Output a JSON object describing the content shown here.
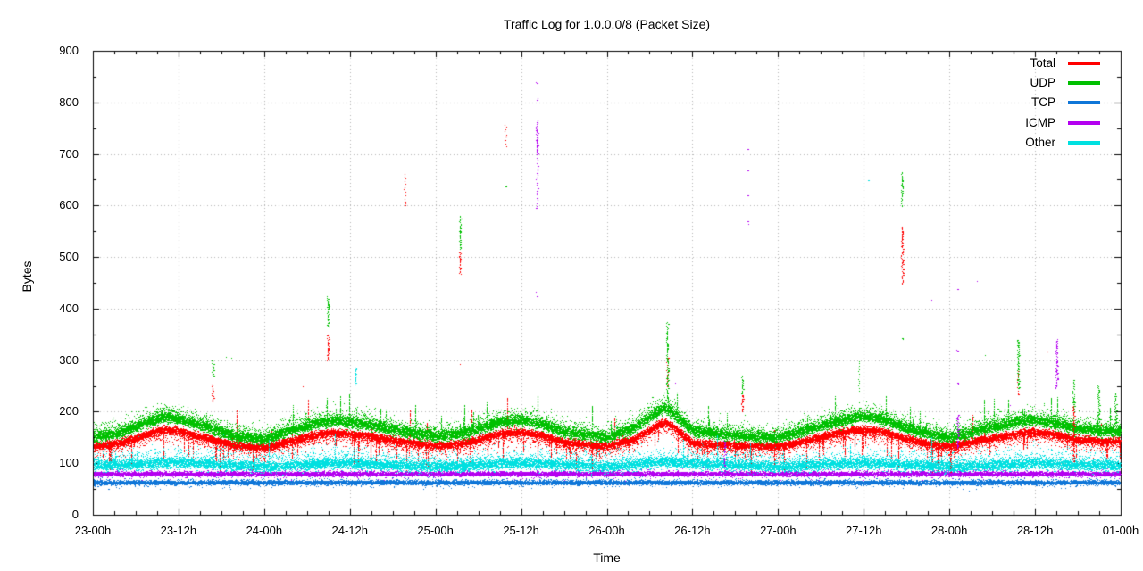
{
  "chart_data": {
    "type": "scatter",
    "title": "Traffic Log for 1.0.0.0/8 (Packet Size)",
    "xlabel": "Time",
    "ylabel": "Bytes",
    "ylim": [
      0,
      900
    ],
    "y_major_step": 100,
    "y_minor_step": 50,
    "y_tick_labels": [
      "0",
      "100",
      "200",
      "300",
      "400",
      "500",
      "600",
      "700",
      "800",
      "900"
    ],
    "x_hours_total": 144,
    "x_major_step_hours": 12,
    "x_minor_step_hours": 3,
    "x_tick_labels": [
      "23-00h",
      "23-12h",
      "24-00h",
      "24-12h",
      "25-00h",
      "25-12h",
      "26-00h",
      "26-12h",
      "27-00h",
      "27-12h",
      "28-00h",
      "28-12h",
      "01-00h"
    ],
    "grid": {
      "show": true,
      "color": "#b4b4b4",
      "style": "dotted"
    },
    "legend": {
      "position": "top-right-inside"
    },
    "series": [
      {
        "name": "Total",
        "color": "#ff0000",
        "style": "dots",
        "envelope": [
          [
            0,
            133
          ],
          [
            4,
            141
          ],
          [
            8,
            159
          ],
          [
            10,
            166
          ],
          [
            12,
            163
          ],
          [
            16,
            149
          ],
          [
            20,
            135
          ],
          [
            24,
            131
          ],
          [
            28,
            145
          ],
          [
            32,
            158
          ],
          [
            34,
            160
          ],
          [
            38,
            154
          ],
          [
            42,
            145
          ],
          [
            48,
            135
          ],
          [
            52,
            140
          ],
          [
            57,
            158
          ],
          [
            60,
            161
          ],
          [
            63,
            154
          ],
          [
            66,
            141
          ],
          [
            70,
            136
          ],
          [
            72,
            133
          ],
          [
            76,
            149
          ],
          [
            79,
            174
          ],
          [
            80,
            180
          ],
          [
            81,
            174
          ],
          [
            84,
            140
          ],
          [
            88,
            136
          ],
          [
            92,
            135
          ],
          [
            96,
            133
          ],
          [
            100,
            145
          ],
          [
            104,
            158
          ],
          [
            107,
            166
          ],
          [
            110,
            164
          ],
          [
            114,
            148
          ],
          [
            118,
            136
          ],
          [
            120,
            133
          ],
          [
            124,
            145
          ],
          [
            128,
            154
          ],
          [
            131,
            161
          ],
          [
            134,
            158
          ],
          [
            138,
            147
          ],
          [
            141,
            144
          ],
          [
            144,
            143
          ]
        ],
        "core_n": 16,
        "core_sd": 3.5,
        "spread_n": 3,
        "spread_sd": 9,
        "spread_dir": -1,
        "spike_down_p": 0.09,
        "spike_down_len": [
          12,
          58
        ],
        "spike_up_p": 0.012,
        "spike_up_len": [
          15,
          70
        ],
        "single_p": 0.004,
        "single_range": [
          195,
          320
        ]
      },
      {
        "name": "UDP",
        "color": "#00c000",
        "style": "dots",
        "envelope": [
          [
            0,
            150
          ],
          [
            4,
            160
          ],
          [
            8,
            182
          ],
          [
            10,
            190
          ],
          [
            12,
            186
          ],
          [
            16,
            170
          ],
          [
            20,
            152
          ],
          [
            24,
            147
          ],
          [
            28,
            165
          ],
          [
            32,
            180
          ],
          [
            34,
            183
          ],
          [
            38,
            176
          ],
          [
            42,
            165
          ],
          [
            48,
            152
          ],
          [
            52,
            158
          ],
          [
            57,
            180
          ],
          [
            60,
            184
          ],
          [
            63,
            176
          ],
          [
            66,
            160
          ],
          [
            70,
            154
          ],
          [
            72,
            150
          ],
          [
            76,
            170
          ],
          [
            79,
            200
          ],
          [
            80,
            207
          ],
          [
            81,
            200
          ],
          [
            84,
            163
          ],
          [
            88,
            157
          ],
          [
            92,
            152
          ],
          [
            96,
            150
          ],
          [
            100,
            165
          ],
          [
            104,
            180
          ],
          [
            107,
            190
          ],
          [
            110,
            188
          ],
          [
            114,
            168
          ],
          [
            118,
            154
          ],
          [
            120,
            150
          ],
          [
            124,
            165
          ],
          [
            128,
            176
          ],
          [
            131,
            184
          ],
          [
            134,
            180
          ],
          [
            138,
            167
          ],
          [
            141,
            163
          ],
          [
            144,
            162
          ]
        ],
        "core_n": 16,
        "core_sd": 5,
        "spread_n": 4,
        "spread_sd": 11,
        "spread_dir": 1,
        "spike_up_p": 0.05,
        "spike_up_len": [
          12,
          55
        ],
        "single_p": 0.005,
        "single_range": [
          200,
          320
        ]
      },
      {
        "name": "TCP",
        "color": "#0f76d8",
        "style": "dots",
        "envelope": [
          [
            0,
            63
          ],
          [
            144,
            63
          ]
        ],
        "core_n": 10,
        "core_sd": 2.1,
        "spread_n": 1,
        "spread_sd": 5,
        "spread_dir": 0
      },
      {
        "name": "ICMP",
        "color": "#b400f0",
        "style": "dots",
        "envelope": [
          [
            0,
            80
          ],
          [
            144,
            80
          ]
        ],
        "core_n": 10,
        "core_sd": 2.1,
        "spread_n": 1,
        "spread_sd": 5,
        "spread_dir": 0,
        "single_p": 0.0035,
        "single_range": [
          140,
          460
        ]
      },
      {
        "name": "Other",
        "color": "#00e0e0",
        "style": "dots",
        "envelope": [
          [
            0,
            95
          ],
          [
            12,
            102
          ],
          [
            24,
            93
          ],
          [
            34,
            101
          ],
          [
            48,
            93
          ],
          [
            60,
            101
          ],
          [
            72,
            93
          ],
          [
            80,
            103
          ],
          [
            96,
            93
          ],
          [
            108,
            101
          ],
          [
            120,
            93
          ],
          [
            132,
            100
          ],
          [
            144,
            95
          ]
        ],
        "core_n": 13,
        "core_sd": 5,
        "spread_n": 3,
        "spread_sd": 13,
        "spread_dir": 1,
        "spike_up_p": 0.01,
        "spike_up_len": [
          20,
          55
        ],
        "single_p": 0.004,
        "single_range": [
          130,
          175
        ]
      }
    ],
    "events": [
      {
        "series": "UDP",
        "hour": 16.8,
        "range": [
          270,
          300
        ]
      },
      {
        "series": "Total",
        "hour": 16.8,
        "range": [
          220,
          255
        ]
      },
      {
        "series": "UDP",
        "hour": 32.9,
        "range": [
          365,
          425
        ]
      },
      {
        "series": "Total",
        "hour": 32.9,
        "range": [
          300,
          350
        ]
      },
      {
        "series": "Other",
        "hour": 36.8,
        "range": [
          253,
          287
        ]
      },
      {
        "series": "Total",
        "hour": 43.7,
        "range": [
          600,
          665
        ],
        "sparse": true
      },
      {
        "series": "UDP",
        "hour": 51.4,
        "range": [
          515,
          580
        ]
      },
      {
        "series": "Total",
        "hour": 51.4,
        "range": [
          468,
          510
        ]
      },
      {
        "series": "Total",
        "hour": 57.8,
        "range": [
          715,
          757
        ],
        "sparse": true
      },
      {
        "series": "UDP",
        "hour": 57.8,
        "dots": [
          637
        ]
      },
      {
        "series": "ICMP",
        "hour": 62.2,
        "range": [
          595,
          765
        ],
        "sparse": true,
        "dots": [
          424,
          838,
          805
        ]
      },
      {
        "series": "ICMP",
        "hour": 62.2,
        "range": [
          700,
          762
        ]
      },
      {
        "series": "UDP",
        "hour": 80.4,
        "range": [
          225,
          375
        ]
      },
      {
        "series": "Total",
        "hour": 80.4,
        "range": [
          250,
          305
        ],
        "sparse": true
      },
      {
        "series": "ICMP",
        "hour": 88.4,
        "range": [
          95,
          145
        ]
      },
      {
        "series": "UDP",
        "hour": 91.0,
        "range": [
          235,
          272
        ]
      },
      {
        "series": "Total",
        "hour": 91.0,
        "range": [
          200,
          232
        ]
      },
      {
        "series": "ICMP",
        "hour": 91.7,
        "dots": [
          570,
          620,
          668,
          710
        ]
      },
      {
        "series": "UDP",
        "hour": 107.3,
        "range": [
          240,
          300
        ],
        "sparse": true
      },
      {
        "series": "Other",
        "hour": 108.6,
        "dots": [
          649
        ]
      },
      {
        "series": "UDP",
        "hour": 113.3,
        "range": [
          598,
          666
        ],
        "dots": [
          342
        ]
      },
      {
        "series": "Total",
        "hour": 113.3,
        "range": [
          448,
          560
        ]
      },
      {
        "series": "ICMP",
        "hour": 121.1,
        "range": [
          130,
          195
        ],
        "dots": [
          256,
          318,
          438
        ]
      },
      {
        "series": "UDP",
        "hour": 129.6,
        "range": [
          245,
          340
        ]
      },
      {
        "series": "Total",
        "hour": 129.6,
        "range": [
          233,
          280
        ],
        "sparse": true
      },
      {
        "series": "ICMP",
        "hour": 135.0,
        "range": [
          245,
          342
        ]
      },
      {
        "series": "UDP",
        "hour": 137.4,
        "range": [
          183,
          262
        ]
      },
      {
        "series": "Total",
        "hour": 137.4,
        "range": [
          103,
          213
        ]
      },
      {
        "series": "UDP",
        "hour": 140.9,
        "range": [
          155,
          253
        ]
      },
      {
        "series": "UDP",
        "hour": 143.2,
        "range": [
          178,
          236
        ]
      }
    ]
  }
}
